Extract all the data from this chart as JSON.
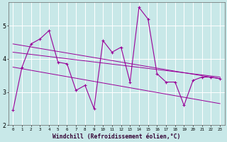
{
  "xlabel": "Windchill (Refroidissement éolien,°C)",
  "bg_color": "#c8e8e8",
  "grid_color": "#ffffff",
  "line_color": "#990099",
  "xlim": [
    -0.5,
    23.5
  ],
  "ylim": [
    2.0,
    5.7
  ],
  "yticks": [
    2,
    3,
    4,
    5
  ],
  "xticks": [
    0,
    1,
    2,
    3,
    4,
    5,
    6,
    7,
    8,
    9,
    10,
    11,
    12,
    13,
    14,
    15,
    16,
    17,
    18,
    19,
    20,
    21,
    22,
    23
  ],
  "hours": [
    0,
    1,
    2,
    3,
    4,
    5,
    6,
    7,
    8,
    9,
    10,
    11,
    12,
    13,
    14,
    15,
    16,
    17,
    18,
    19,
    20,
    21,
    22,
    23
  ],
  "data_series": [
    2.45,
    3.75,
    4.45,
    4.6,
    4.85,
    3.9,
    3.85,
    3.05,
    3.2,
    2.5,
    4.55,
    4.2,
    4.35,
    3.3,
    5.55,
    5.2,
    3.55,
    3.3,
    3.3,
    2.6,
    3.35,
    3.45,
    3.45,
    3.4
  ],
  "trend_lines": [
    {
      "x0": 0,
      "y0": 4.45,
      "x1": 23,
      "y1": 3.4
    },
    {
      "x0": 0,
      "y0": 4.2,
      "x1": 23,
      "y1": 3.45
    },
    {
      "x0": 0,
      "y0": 3.75,
      "x1": 23,
      "y1": 2.65
    }
  ]
}
